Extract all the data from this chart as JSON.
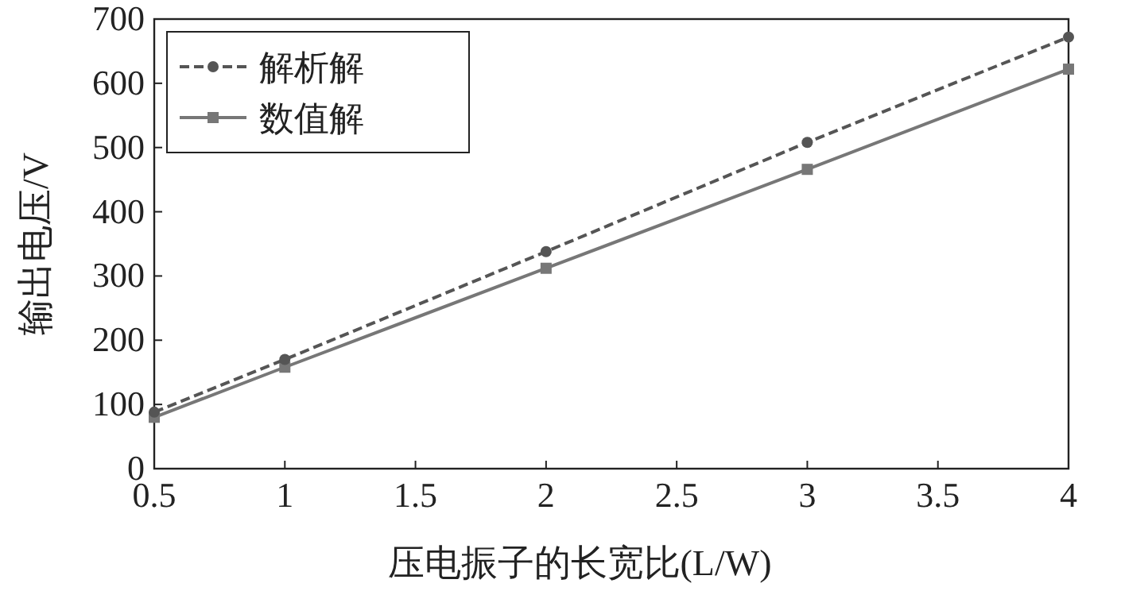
{
  "chart_data": {
    "type": "line",
    "xlabel": "压电振子的长宽比(L/W)",
    "ylabel": "输出电压/V",
    "xlim": [
      0.5,
      4
    ],
    "xticks": [
      0.5,
      1,
      1.5,
      2,
      2.5,
      3,
      3.5,
      4
    ],
    "ylim": [
      0,
      700
    ],
    "yticks": [
      0,
      100,
      200,
      300,
      400,
      500,
      600,
      700
    ],
    "x": [
      0.5,
      1,
      2,
      3,
      4
    ],
    "grid": false,
    "legend": "top left",
    "series": [
      {
        "name": "解析解",
        "color": "#555555",
        "line_style": "dashed",
        "marker": "circle",
        "values": [
          88,
          170,
          338,
          508,
          672
        ]
      },
      {
        "name": "数值解",
        "color": "#777777",
        "line_style": "solid",
        "marker": "square",
        "values": [
          80,
          158,
          312,
          466,
          622
        ]
      }
    ]
  }
}
